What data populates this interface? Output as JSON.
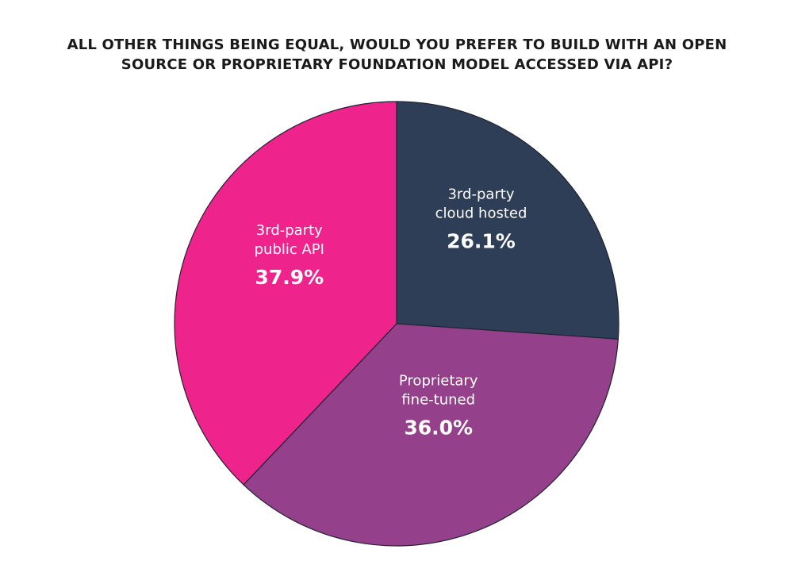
{
  "chart_data": {
    "type": "pie",
    "title_lines": [
      "ALL OTHER THINGS BEING EQUAL, WOULD YOU PREFER TO BUILD WITH AN OPEN",
      "SOURCE OR PROPRIETARY FOUNDATION MODEL ACCESSED VIA API?"
    ],
    "slices": [
      {
        "label_lines": [
          "3rd-party",
          "cloud hosted"
        ],
        "value": 26.1,
        "value_label": "26.1%",
        "color": "#2e3e56"
      },
      {
        "label_lines": [
          "Proprietary",
          "fine-tuned"
        ],
        "value": 36.0,
        "value_label": "36.0%",
        "color": "#95408a"
      },
      {
        "label_lines": [
          "3rd-party",
          "public API"
        ],
        "value": 37.9,
        "value_label": "37.9%",
        "color": "#ee238c"
      }
    ],
    "start_angle_deg": 0,
    "direction": "clockwise",
    "legend": "none"
  }
}
